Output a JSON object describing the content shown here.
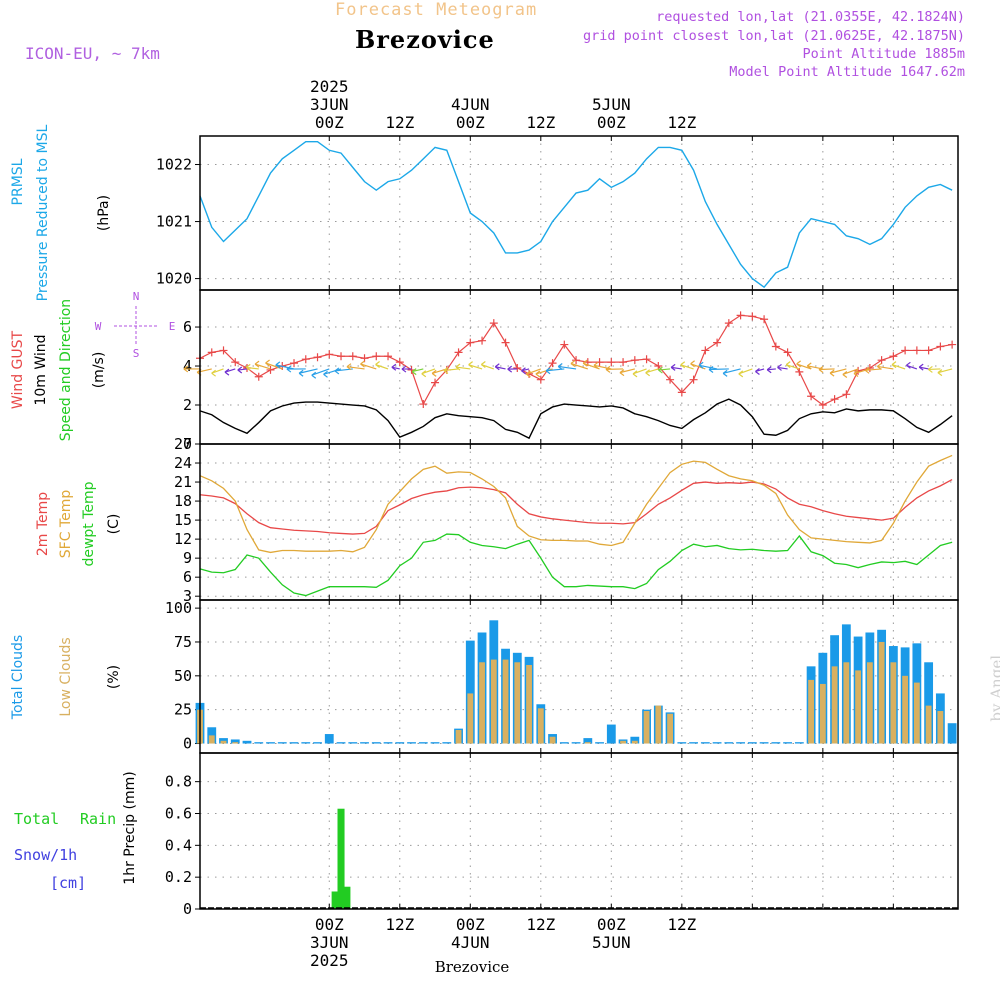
{
  "header": {
    "title": "Forecast Meteogram",
    "location": "Brezovice",
    "model": "ICON-EU, ~ 7km",
    "info_lines": [
      "requested lon,lat (21.0355E, 42.1824N)",
      "grid point closest lon,lat (21.0625E, 42.1875N)",
      "Point Altitude 1885m",
      "Model Point Altitude 1647.62m"
    ],
    "footer_location": "Brezovice",
    "credit": "by Angel"
  },
  "colors": {
    "pressure": "#1ca8e8",
    "gust": "#e84848",
    "wind": "#000000",
    "t2m": "#e84848",
    "tsfc": "#e0a838",
    "dewpt": "#22cc22",
    "total_clouds": "#1a9ae8",
    "low_clouds": "#d8b060",
    "rain": "#22cc22",
    "snow": "#4040e0",
    "compass": "#b050e0"
  },
  "chart_data": [
    {
      "type": "line",
      "id": "pressure",
      "ylabel": [
        "PRMSL",
        "Pressure Reduced to MSL"
      ],
      "unit": "(hPa)",
      "ylim": [
        1019.8,
        1022.5
      ],
      "yticks": [
        1020,
        1021,
        1022
      ],
      "grid": true,
      "x": [
        0,
        2,
        4,
        6,
        8,
        10,
        12,
        14,
        16,
        18,
        20,
        22,
        24,
        26,
        28,
        30,
        32,
        34,
        36,
        38,
        40,
        42,
        44,
        46,
        48,
        50,
        52,
        54,
        56,
        58,
        60,
        62,
        64,
        66,
        68,
        70,
        72,
        74,
        76,
        78,
        80,
        82,
        84,
        86,
        88,
        90,
        92,
        94,
        96,
        98,
        100,
        102,
        104,
        106,
        108,
        110,
        112,
        114,
        116,
        118,
        120,
        122,
        124,
        126,
        128
      ],
      "series": [
        {
          "values": [
            1021.45,
            1020.9,
            1020.65,
            1020.85,
            1021.05,
            1021.45,
            1021.85,
            1022.1,
            1022.25,
            1022.4,
            1022.4,
            1022.25,
            1022.2,
            1021.95,
            1021.7,
            1021.55,
            1021.7,
            1021.75,
            1021.9,
            1022.1,
            1022.3,
            1022.25,
            1021.7,
            1021.15,
            1021.0,
            1020.8,
            1020.45,
            1020.45,
            1020.5,
            1020.65,
            1021.0,
            1021.25,
            1021.5,
            1021.55,
            1021.75,
            1021.6,
            1021.7,
            1021.85,
            1022.1,
            1022.3,
            1022.3,
            1022.25,
            1021.9,
            1021.35,
            1020.95,
            1020.6,
            1020.25,
            1020.0,
            1019.85,
            1020.1,
            1020.2,
            1020.8,
            1021.05,
            1021.0,
            1020.95,
            1020.75,
            1020.7,
            1020.6,
            1020.7,
            1020.95,
            1021.25,
            1021.45,
            1021.6,
            1021.65,
            1021.55
          ]
        }
      ]
    },
    {
      "type": "line",
      "id": "wind",
      "ylabel": [
        "Wind GUST",
        "10m Wind",
        "Speed and Direction"
      ],
      "unit": "(m/s)",
      "ylim": [
        0,
        7.9
      ],
      "yticks": [
        0,
        2,
        4,
        6
      ],
      "grid": true,
      "compass": {
        "north": "N",
        "south": "S",
        "west": "W",
        "east": "E"
      },
      "series": [
        {
          "name": "Wind GUST",
          "x": [
            0,
            2,
            4,
            6,
            8,
            10,
            12,
            14,
            16,
            18,
            20,
            22,
            24,
            26,
            28,
            30,
            32,
            34,
            36,
            38,
            40,
            42,
            44,
            46,
            48,
            50,
            52,
            54,
            56,
            58,
            60,
            62,
            64,
            66,
            68,
            70,
            72,
            74,
            76,
            78,
            80,
            82,
            84,
            86,
            88,
            90,
            92,
            94,
            96,
            98,
            100,
            102,
            104,
            106,
            108,
            110,
            112,
            114,
            116,
            118,
            120,
            122,
            124,
            126,
            128
          ],
          "values": [
            4.4,
            4.7,
            4.8,
            4.2,
            3.9,
            3.45,
            3.8,
            4.0,
            4.15,
            4.35,
            4.45,
            4.6,
            4.5,
            4.5,
            4.4,
            4.5,
            4.5,
            4.2,
            3.8,
            2.05,
            3.15,
            3.8,
            4.7,
            5.2,
            5.3,
            6.2,
            5.2,
            3.9,
            3.6,
            3.3,
            4.15,
            5.1,
            4.3,
            4.2,
            4.2,
            4.2,
            4.2,
            4.3,
            4.35,
            4.0,
            3.3,
            2.65,
            3.3,
            4.8,
            5.2,
            6.2,
            6.6,
            6.55,
            6.4,
            5.0,
            4.7,
            3.7,
            2.45,
            2.0,
            2.3,
            2.55,
            3.75,
            3.9,
            4.3,
            4.5,
            4.8,
            4.8,
            4.8,
            5.0,
            5.1
          ]
        },
        {
          "name": "10m Wind",
          "x": [
            0,
            2,
            4,
            6,
            8,
            10,
            12,
            14,
            16,
            18,
            20,
            22,
            24,
            26,
            28,
            30,
            32,
            34,
            36,
            38,
            40,
            42,
            44,
            46,
            48,
            50,
            52,
            54,
            56,
            58,
            60,
            62,
            64,
            66,
            68,
            70,
            72,
            74,
            76,
            78,
            80,
            82,
            84,
            86,
            88,
            90,
            92,
            94,
            96,
            98,
            100,
            102,
            104,
            106,
            108,
            110,
            112,
            114,
            116,
            118,
            120,
            122,
            124,
            126,
            128
          ],
          "values": [
            1.7,
            1.5,
            1.1,
            0.8,
            0.55,
            1.1,
            1.7,
            1.95,
            2.1,
            2.15,
            2.15,
            2.1,
            2.05,
            2.0,
            1.95,
            1.75,
            1.2,
            0.35,
            0.6,
            0.9,
            1.35,
            1.55,
            1.45,
            1.4,
            1.35,
            1.2,
            0.75,
            0.6,
            0.3,
            1.55,
            1.9,
            2.05,
            2.0,
            1.95,
            1.9,
            1.95,
            1.85,
            1.55,
            1.4,
            1.2,
            0.95,
            0.8,
            1.25,
            1.6,
            2.05,
            2.3,
            2.0,
            1.4,
            0.5,
            0.45,
            0.7,
            1.3,
            1.55,
            1.65,
            1.6,
            1.8,
            1.7,
            1.75,
            1.75,
            1.7,
            1.3,
            0.85,
            0.6,
            1.0,
            1.45
          ]
        }
      ]
    },
    {
      "type": "line",
      "id": "temperature",
      "ylabel": [
        "2m Temp",
        "SFC Temp",
        "dewpt Temp"
      ],
      "unit": "(C)",
      "ylim": [
        2.4,
        27
      ],
      "yticks": [
        3,
        6,
        9,
        12,
        15,
        18,
        21,
        24,
        27
      ],
      "grid": true,
      "x": [
        0,
        2,
        4,
        6,
        8,
        10,
        12,
        14,
        16,
        18,
        20,
        22,
        24,
        26,
        28,
        30,
        32,
        34,
        36,
        38,
        40,
        42,
        44,
        46,
        48,
        50,
        52,
        54,
        56,
        58,
        60,
        62,
        64,
        66,
        68,
        70,
        72,
        74,
        76,
        78,
        80,
        82,
        84,
        86,
        88,
        90,
        92,
        94,
        96,
        98,
        100,
        102,
        104,
        106,
        108,
        110,
        112,
        114,
        116,
        118,
        120,
        122,
        124,
        126,
        128
      ],
      "series": [
        {
          "name": "2m Temp",
          "values": [
            19.0,
            18.8,
            18.5,
            17.6,
            16.0,
            14.6,
            13.8,
            13.6,
            13.4,
            13.3,
            13.2,
            13.0,
            12.9,
            12.8,
            12.9,
            14.0,
            16.5,
            17.4,
            18.4,
            19.0,
            19.4,
            19.6,
            20.1,
            20.2,
            20.1,
            19.8,
            19.3,
            17.5,
            16.0,
            15.5,
            15.2,
            15.0,
            14.8,
            14.6,
            14.5,
            14.5,
            14.4,
            14.6,
            16.0,
            17.5,
            18.5,
            19.7,
            20.8,
            21.0,
            20.8,
            20.9,
            20.8,
            21.0,
            20.7,
            19.9,
            18.5,
            17.5,
            17.1,
            16.5,
            16.0,
            15.6,
            15.4,
            15.2,
            15.0,
            15.3,
            17.0,
            18.5,
            19.6,
            20.4,
            21.4
          ]
        },
        {
          "name": "SFC Temp",
          "values": [
            22.0,
            21.2,
            20.0,
            18.0,
            13.5,
            10.3,
            9.9,
            10.2,
            10.2,
            10.1,
            10.1,
            10.1,
            10.2,
            10.0,
            10.7,
            13.5,
            17.5,
            19.5,
            21.5,
            23.0,
            23.5,
            22.4,
            22.6,
            22.5,
            21.5,
            20.3,
            18.5,
            14.0,
            12.5,
            11.9,
            11.8,
            11.8,
            11.7,
            11.7,
            11.2,
            11.0,
            11.5,
            14.5,
            17.5,
            20.0,
            22.5,
            23.8,
            24.3,
            24.1,
            23.0,
            22.0,
            21.5,
            21.2,
            20.5,
            19.2,
            15.8,
            13.5,
            12.2,
            12.0,
            11.8,
            11.6,
            11.5,
            11.4,
            11.8,
            14.5,
            18.0,
            21.0,
            23.5,
            24.4,
            25.2
          ]
        },
        {
          "name": "dewpt Temp",
          "values": [
            7.3,
            6.8,
            6.7,
            7.2,
            9.5,
            9.0,
            6.8,
            4.8,
            3.5,
            3.1,
            3.8,
            4.5,
            4.5,
            4.5,
            4.5,
            4.4,
            5.5,
            7.8,
            9.0,
            11.5,
            11.8,
            12.8,
            12.7,
            11.5,
            11.0,
            10.8,
            10.5,
            11.2,
            11.8,
            9.0,
            6.0,
            4.5,
            4.5,
            4.7,
            4.6,
            4.5,
            4.5,
            4.2,
            5.0,
            7.2,
            8.5,
            10.2,
            11.2,
            10.8,
            11.0,
            10.5,
            10.3,
            10.4,
            10.2,
            10.1,
            10.2,
            12.5,
            10.0,
            9.4,
            8.2,
            8.0,
            7.5,
            8.0,
            8.4,
            8.3,
            8.5,
            8.0,
            9.5,
            11.0,
            11.5
          ]
        }
      ]
    },
    {
      "type": "bar",
      "id": "clouds",
      "ylabel": [
        "Total Clouds",
        "Low Clouds"
      ],
      "unit": "(%)",
      "ylim": [
        -7,
        106
      ],
      "yticks": [
        0,
        25,
        50,
        75,
        100
      ],
      "grid": true,
      "x": [
        0,
        2,
        4,
        6,
        8,
        10,
        12,
        14,
        16,
        18,
        20,
        22,
        24,
        26,
        28,
        30,
        32,
        34,
        36,
        38,
        40,
        42,
        44,
        46,
        48,
        50,
        52,
        54,
        56,
        58,
        60,
        62,
        64,
        66,
        68,
        70,
        72,
        74,
        76,
        78,
        80,
        82,
        84,
        86,
        88,
        90,
        92,
        94,
        96,
        98,
        100,
        102,
        104,
        106,
        108,
        110,
        112,
        114,
        116,
        118,
        120,
        122,
        124,
        126,
        128
      ],
      "series": [
        {
          "name": "Total Clouds",
          "values": [
            30,
            12,
            4,
            3,
            2,
            1,
            1,
            1,
            1,
            1,
            1,
            7,
            1,
            1,
            1,
            1,
            1,
            1,
            1,
            1,
            1,
            1,
            11,
            76,
            82,
            91,
            70,
            67,
            64,
            29,
            7,
            1,
            1,
            4,
            1,
            14,
            3,
            5,
            25,
            28,
            23,
            1,
            1,
            1,
            1,
            1,
            1,
            1,
            1,
            1,
            1,
            1,
            57,
            67,
            80,
            88,
            79,
            82,
            84,
            72,
            71,
            74,
            60,
            37,
            15
          ]
        },
        {
          "name": "Low Clouds",
          "values": [
            25,
            6,
            2,
            1,
            0,
            0,
            0,
            0,
            0,
            0,
            0,
            0,
            0,
            0,
            0,
            0,
            0,
            0,
            0,
            0,
            0,
            0,
            10,
            37,
            60,
            62,
            62,
            60,
            58,
            26,
            5,
            0,
            0,
            1,
            0,
            0,
            2,
            2,
            24,
            28,
            22,
            0,
            0,
            0,
            0,
            0,
            0,
            0,
            0,
            0,
            0,
            0,
            47,
            44,
            57,
            60,
            54,
            60,
            75,
            60,
            50,
            45,
            28,
            24,
            0
          ]
        }
      ]
    },
    {
      "type": "bar",
      "id": "precip",
      "ylabel": [
        "1hr Precip (mm)"
      ],
      "legend": [
        "Total",
        "Rain",
        "Snow/1h",
        "[cm]"
      ],
      "ylim": [
        0,
        0.98
      ],
      "yticks": [
        0,
        0.2,
        0.4,
        0.6,
        0.8
      ],
      "grid": true,
      "series": [
        {
          "name": "Rain",
          "x": [
            23,
            24,
            25
          ],
          "values": [
            0.11,
            0.63,
            0.14
          ]
        }
      ]
    }
  ],
  "time_axis": {
    "top_labels": [
      {
        "lines": [
          "2025",
          "3JUN",
          "00Z"
        ],
        "at": "3JUN 00Z"
      },
      {
        "lines": [
          "12Z"
        ],
        "at": "3JUN 12Z"
      },
      {
        "lines": [
          "4JUN",
          "00Z"
        ],
        "at": "4JUN 00Z"
      },
      {
        "lines": [
          "12Z"
        ],
        "at": "4JUN 12Z"
      },
      {
        "lines": [
          "5JUN",
          "00Z"
        ],
        "at": "5JUN 00Z"
      },
      {
        "lines": [
          "12Z"
        ],
        "at": "5JUN 12Z"
      }
    ],
    "bottom_labels": [
      {
        "lines": [
          "00Z",
          "3JUN",
          "2025"
        ],
        "at": "3JUN 00Z"
      },
      {
        "lines": [
          "12Z"
        ],
        "at": "3JUN 12Z"
      },
      {
        "lines": [
          "00Z",
          "4JUN"
        ],
        "at": "4JUN 00Z"
      },
      {
        "lines": [
          "12Z"
        ],
        "at": "4JUN 12Z"
      },
      {
        "lines": [
          "00Z",
          "5JUN"
        ],
        "at": "5JUN 00Z"
      },
      {
        "lines": [
          "12Z"
        ],
        "at": "5JUN 12Z"
      }
    ]
  }
}
